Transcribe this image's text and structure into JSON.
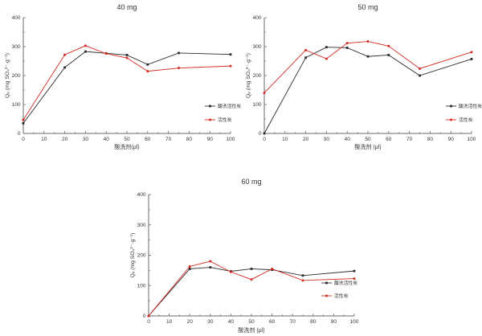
{
  "figure": {
    "background": "#ffffff",
    "description_note": ""
  },
  "colors": {
    "black_series": "#2b2b2b",
    "red_series": "#d42a20",
    "axis": "#6a6a6a",
    "tick_text": "#3a3a3a"
  },
  "chart_data": [
    {
      "type": "line",
      "title": "40 mg",
      "xlabel": "酸洗剂(μl)",
      "ylabel": "Qₑ (mg SO₄²⁻·g⁻¹)",
      "xlim": [
        0,
        100
      ],
      "ylim": [
        0,
        400
      ],
      "xticks": [
        0,
        10,
        20,
        30,
        40,
        50,
        60,
        70,
        80,
        90,
        100
      ],
      "yticks": [
        0,
        100,
        200,
        300,
        400
      ],
      "grid": false,
      "legend_position": "inside right",
      "x": [
        0,
        20,
        30,
        40,
        50,
        60,
        75,
        100
      ],
      "series": [
        {
          "name": "酸洗活性炭",
          "color": "black",
          "marker": "square",
          "values": [
            35,
            228,
            283,
            277,
            271,
            238,
            278,
            273
          ]
        },
        {
          "name": "活性炭",
          "color": "red",
          "marker": "circle",
          "values": [
            47,
            272,
            303,
            276,
            261,
            215,
            226,
            233
          ]
        }
      ]
    },
    {
      "type": "line",
      "title": "50 mg",
      "xlabel": "酸洗剂 (μl)",
      "ylabel": "Qₑ (mg SO₄²⁻·g⁻¹)",
      "xlim": [
        0,
        100
      ],
      "ylim": [
        0,
        400
      ],
      "xticks": [
        0,
        10,
        20,
        30,
        40,
        50,
        60,
        70,
        80,
        90,
        100
      ],
      "yticks": [
        0,
        100,
        200,
        300,
        400
      ],
      "grid": false,
      "legend_position": "inside right",
      "x": [
        0,
        20,
        30,
        40,
        50,
        60,
        75,
        100
      ],
      "series": [
        {
          "name": "酸洗活性炭",
          "color": "black",
          "marker": "square",
          "values": [
            0,
            262,
            298,
            296,
            266,
            271,
            200,
            257
          ]
        },
        {
          "name": "活性炭",
          "color": "red",
          "marker": "circle",
          "values": [
            140,
            288,
            258,
            312,
            318,
            302,
            224,
            281
          ]
        }
      ]
    },
    {
      "type": "line",
      "title": "60 mg",
      "xlabel": "酸洗剂 (μl)",
      "ylabel": "Qₑ (mg SO₄²⁻·g⁻¹)",
      "xlim": [
        0,
        100
      ],
      "ylim": [
        0,
        400
      ],
      "xticks": [
        0,
        10,
        20,
        30,
        40,
        50,
        60,
        70,
        80,
        90,
        100
      ],
      "yticks": [
        0,
        100,
        200,
        300,
        400
      ],
      "grid": false,
      "legend_position": "inside right",
      "x": [
        0,
        20,
        30,
        40,
        50,
        60,
        75,
        100
      ],
      "series": [
        {
          "name": "酸洗活性炭",
          "color": "black",
          "marker": "square",
          "values": [
            0,
            155,
            160,
            147,
            155,
            152,
            133,
            148
          ]
        },
        {
          "name": "活性炭",
          "color": "red",
          "marker": "circle",
          "values": [
            0,
            163,
            180,
            145,
            120,
            155,
            117,
            123
          ]
        }
      ]
    }
  ]
}
